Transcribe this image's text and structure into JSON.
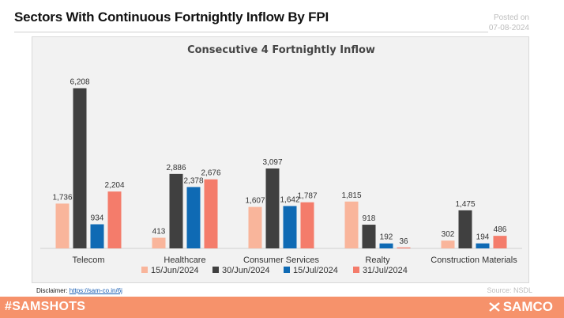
{
  "header": {
    "title": "Sectors With Continuous Fortnightly Inflow By FPI",
    "posted_label": "Posted on",
    "posted_date": "07-08-2024"
  },
  "footer": {
    "disclaimer_label": "Disclaimer:",
    "disclaimer_link": "https://sam-co.in/6j",
    "source": "Source: NSDL",
    "hashtag": "#SAMSHOTS",
    "brand": "SAMCO",
    "brand_icon": "samco-logo-icon"
  },
  "colors": {
    "footer_band": "#f6926b",
    "chart_bg": "#f2f2f2"
  },
  "chart_data": {
    "type": "bar",
    "title": "Consecutive 4 Fortnightly Inflow",
    "categories": [
      "Telecom",
      "Healthcare",
      "Consumer Services",
      "Realty",
      "Construction Materials"
    ],
    "series": [
      {
        "name": "15/Jun/2024",
        "color": "#f9b59b",
        "values": [
          1736,
          413,
          1607,
          1815,
          302
        ],
        "labels": [
          "1,736",
          "413",
          "1,607",
          "1,815",
          "302"
        ]
      },
      {
        "name": "30/Jun/2024",
        "color": "#404040",
        "values": [
          6208,
          2886,
          3097,
          918,
          1475
        ],
        "labels": [
          "6,208",
          "2,886",
          "3,097",
          "918",
          "1,475"
        ]
      },
      {
        "name": "15/Jul/2024",
        "color": "#0f6ab4",
        "values": [
          934,
          2378,
          1642,
          192,
          194
        ],
        "labels": [
          "934",
          "2,378",
          "1,642",
          "192",
          "194"
        ]
      },
      {
        "name": "31/Jul/2024",
        "color": "#f47c6b",
        "values": [
          2204,
          2676,
          1787,
          36,
          486
        ],
        "labels": [
          "2,204",
          "2,676",
          "1,787",
          "36",
          "486"
        ]
      }
    ],
    "ylim": [
      0,
      6500
    ],
    "grid": false,
    "legend": "bottom"
  }
}
